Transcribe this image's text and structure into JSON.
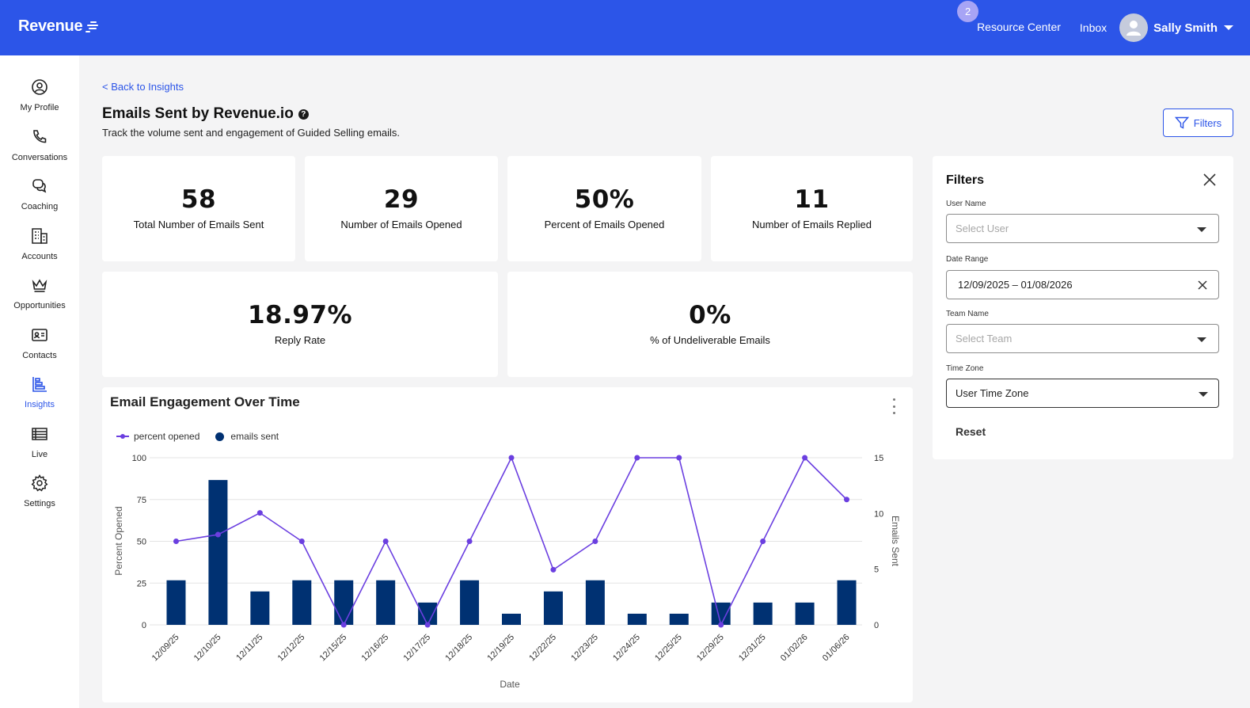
{
  "app": {
    "logo_text": "Revenue",
    "resource_center_badge": "2",
    "resource_center": "Resource Center",
    "inbox": "Inbox",
    "user_name": "Sally Smith"
  },
  "sidebar": {
    "items": [
      {
        "label": "My Profile",
        "icon": "profile-icon"
      },
      {
        "label": "Conversations",
        "icon": "phone-icon"
      },
      {
        "label": "Coaching",
        "icon": "chat-icon"
      },
      {
        "label": "Accounts",
        "icon": "building-icon"
      },
      {
        "label": "Opportunities",
        "icon": "crown-icon"
      },
      {
        "label": "Contacts",
        "icon": "contact-card-icon"
      },
      {
        "label": "Insights",
        "icon": "insights-icon",
        "active": true
      },
      {
        "label": "Live",
        "icon": "live-list-icon"
      },
      {
        "label": "Settings",
        "icon": "gear-icon"
      }
    ]
  },
  "header": {
    "back_link": "< Back to Insights",
    "title": "Emails Sent by Revenue.io",
    "subtitle": "Track the volume sent and engagement of Guided Selling emails.",
    "filters_button": "Filters"
  },
  "kpis": [
    {
      "value": "58",
      "caption": "Total Number of Emails Sent"
    },
    {
      "value": "29",
      "caption": "Number of Emails Opened"
    },
    {
      "value": "50%",
      "caption": "Percent of Emails Opened"
    },
    {
      "value": "11",
      "caption": "Number of Emails Replied"
    },
    {
      "value": "18.97%",
      "caption": "Reply Rate"
    },
    {
      "value": "0%",
      "caption": "% of Undeliverable Emails"
    }
  ],
  "chart": {
    "title": "Email Engagement Over Time",
    "legend_line": "percent opened",
    "legend_bar": "emails sent"
  },
  "chart_data": {
    "type": "bar",
    "title": "Email Engagement Over Time",
    "xlabel": "Date",
    "ylabel": "Percent Opened",
    "y2label": "Emails Sent",
    "ylim": [
      0,
      100
    ],
    "y2lim": [
      0,
      15
    ],
    "yticks": [
      0,
      25,
      50,
      75,
      100
    ],
    "y2ticks": [
      0,
      5,
      10,
      15
    ],
    "legend_position": "top-left",
    "grid": true,
    "categories": [
      "12/09/25",
      "12/10/25",
      "12/11/25",
      "12/12/25",
      "12/15/25",
      "12/16/25",
      "12/17/25",
      "12/18/25",
      "12/19/25",
      "12/22/25",
      "12/23/25",
      "12/24/25",
      "12/25/25",
      "12/29/25",
      "12/31/25",
      "01/02/26",
      "01/06/26"
    ],
    "series": [
      {
        "name": "emails sent",
        "type": "bar",
        "axis": "right",
        "color": "#003172",
        "values": [
          4,
          13,
          3,
          4,
          4,
          4,
          2,
          4,
          1,
          3,
          4,
          1,
          1,
          2,
          2,
          2,
          4
        ]
      },
      {
        "name": "percent opened",
        "type": "line",
        "axis": "left",
        "color": "#6b3fe0",
        "values": [
          50,
          54,
          67,
          50,
          0,
          50,
          0,
          50,
          100,
          33,
          50,
          100,
          100,
          0,
          50,
          100,
          75
        ]
      }
    ]
  },
  "filters": {
    "title": "Filters",
    "user_label": "User Name",
    "user_placeholder": "Select User",
    "date_label": "Date Range",
    "date_value": "12/09/2025 – 01/08/2026",
    "team_label": "Team Name",
    "team_placeholder": "Select Team",
    "tz_label": "Time Zone",
    "tz_value": "User Time Zone",
    "reset": "Reset"
  },
  "colors": {
    "brand": "#2c55e8",
    "bar": "#003172",
    "line": "#6b3fe0",
    "background": "#f4f4f5"
  }
}
